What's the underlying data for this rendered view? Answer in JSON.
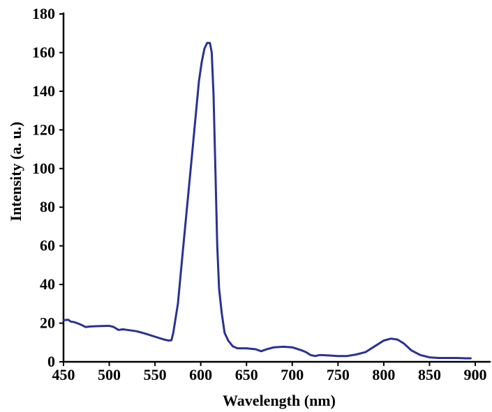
{
  "chart_data": {
    "type": "line",
    "xlabel": "Wavelength (nm)",
    "ylabel": "Intensity (a. u.)",
    "xlim": [
      450,
      900
    ],
    "ylim": [
      0,
      180
    ],
    "x_ticks": [
      "450",
      "500",
      "550",
      "600",
      "650",
      "700",
      "750",
      "800",
      "850",
      "900"
    ],
    "y_ticks": [
      "0",
      "20",
      "40",
      "60",
      "80",
      "100",
      "120",
      "140",
      "160",
      "180"
    ],
    "grid": false,
    "legend": "none",
    "series": [
      {
        "color": "#2b3192",
        "points": [
          [
            450,
            21.5
          ],
          [
            455,
            21.8
          ],
          [
            458,
            20.8
          ],
          [
            462,
            20.5
          ],
          [
            466,
            19.8
          ],
          [
            470,
            19.0
          ],
          [
            474,
            18.0
          ],
          [
            480,
            18.3
          ],
          [
            490,
            18.5
          ],
          [
            500,
            18.6
          ],
          [
            505,
            18.0
          ],
          [
            510,
            16.5
          ],
          [
            515,
            16.8
          ],
          [
            520,
            16.5
          ],
          [
            530,
            15.8
          ],
          [
            540,
            14.5
          ],
          [
            550,
            13.0
          ],
          [
            560,
            11.5
          ],
          [
            565,
            11.0
          ],
          [
            568,
            11.2
          ],
          [
            570,
            15.0
          ],
          [
            575,
            30.0
          ],
          [
            580,
            55.0
          ],
          [
            585,
            80.0
          ],
          [
            590,
            105.0
          ],
          [
            595,
            130.0
          ],
          [
            598,
            145.0
          ],
          [
            601,
            155.0
          ],
          [
            604,
            162.0
          ],
          [
            607,
            165.0
          ],
          [
            610,
            165.0
          ],
          [
            612,
            160.0
          ],
          [
            614,
            138.0
          ],
          [
            616,
            100.0
          ],
          [
            618,
            60.0
          ],
          [
            620,
            38.0
          ],
          [
            623,
            25.0
          ],
          [
            626,
            15.0
          ],
          [
            630,
            11.0
          ],
          [
            635,
            8.0
          ],
          [
            640,
            7.0
          ],
          [
            650,
            7.0
          ],
          [
            660,
            6.5
          ],
          [
            666,
            5.5
          ],
          [
            672,
            6.5
          ],
          [
            680,
            7.5
          ],
          [
            690,
            7.8
          ],
          [
            700,
            7.5
          ],
          [
            710,
            6.0
          ],
          [
            715,
            5.0
          ],
          [
            720,
            3.5
          ],
          [
            725,
            3.0
          ],
          [
            730,
            3.5
          ],
          [
            740,
            3.3
          ],
          [
            750,
            3.0
          ],
          [
            760,
            3.0
          ],
          [
            770,
            3.8
          ],
          [
            780,
            5.0
          ],
          [
            790,
            8.0
          ],
          [
            800,
            11.0
          ],
          [
            808,
            12.0
          ],
          [
            815,
            11.5
          ],
          [
            822,
            9.5
          ],
          [
            830,
            6.0
          ],
          [
            840,
            3.5
          ],
          [
            850,
            2.3
          ],
          [
            860,
            2.0
          ],
          [
            870,
            2.0
          ],
          [
            880,
            2.0
          ],
          [
            890,
            1.8
          ],
          [
            895,
            1.8
          ]
        ]
      }
    ]
  }
}
